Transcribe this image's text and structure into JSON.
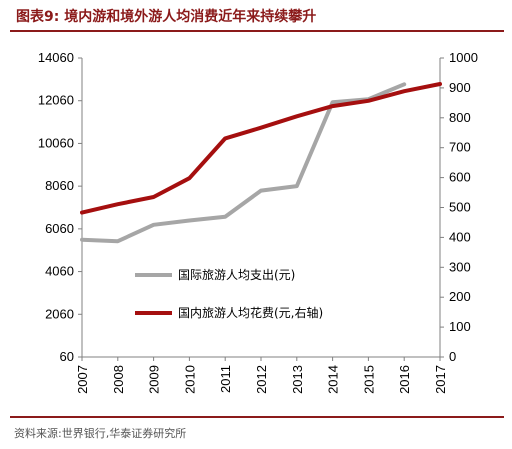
{
  "header": {
    "title": "图表9:  境内游和境外游人均消费近年来持续攀升"
  },
  "footer": {
    "source": "资料来源:世界银行,华泰证券研究所"
  },
  "chart_data": {
    "type": "line",
    "title": "图表9:  境内游和境外游人均消费近年来持续攀升",
    "x": [
      "2007",
      "2008",
      "2009",
      "2010",
      "2011",
      "2012",
      "2013",
      "2014",
      "2015",
      "2016",
      "2017"
    ],
    "y_left": {
      "min": 60,
      "max": 14060,
      "ticks": [
        "60",
        "2060",
        "4060",
        "6060",
        "8060",
        "10060",
        "12060",
        "14060"
      ]
    },
    "y_right": {
      "min": 0,
      "max": 1000,
      "ticks": [
        "0",
        "100",
        "200",
        "300",
        "400",
        "500",
        "600",
        "700",
        "800",
        "900",
        "1000"
      ]
    },
    "series": [
      {
        "name": "国际旅游人均支出(元)",
        "axis": "left",
        "color": "#A6A6A6",
        "x": [
          "2007",
          "2008",
          "2009",
          "2010",
          "2011",
          "2012",
          "2013",
          "2014",
          "2015",
          "2016"
        ],
        "values": [
          5550,
          5480,
          6250,
          6450,
          6630,
          7850,
          8060,
          11990,
          12130,
          12830
        ]
      },
      {
        "name": "国内旅游人均花费(元,右轴)",
        "axis": "right",
        "color": "#A50F0F",
        "x": [
          "2007",
          "2008",
          "2009",
          "2010",
          "2011",
          "2012",
          "2013",
          "2014",
          "2015",
          "2016",
          "2017"
        ],
        "values": [
          483,
          511,
          535,
          598,
          731,
          767,
          805,
          839,
          857,
          889,
          913
        ]
      }
    ],
    "legend": "inside-lower-right",
    "grid": false
  }
}
